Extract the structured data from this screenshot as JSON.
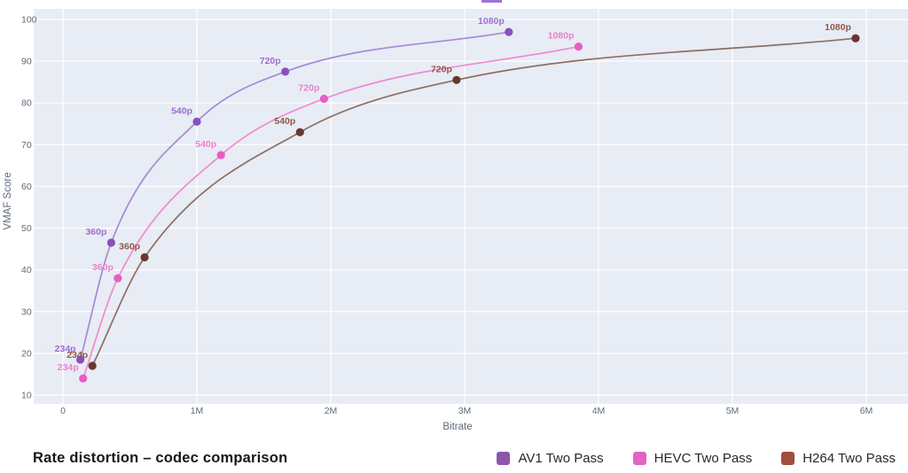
{
  "chart_data": {
    "type": "line",
    "title": "Rate distortion – codec comparison",
    "xlabel": "Bitrate",
    "ylabel": "VMAF Score",
    "grid": true,
    "legend_position": "bottom-right",
    "xlim_ticks": [
      0,
      6
    ],
    "ylim_ticks": [
      10,
      100
    ],
    "x_ticks": [
      {
        "value": 0,
        "label": "0"
      },
      {
        "value": 1,
        "label": "1M"
      },
      {
        "value": 2,
        "label": "2M"
      },
      {
        "value": 3,
        "label": "3M"
      },
      {
        "value": 4,
        "label": "4M"
      },
      {
        "value": 5,
        "label": "5M"
      },
      {
        "value": 6,
        "label": "6M"
      }
    ],
    "y_ticks": [
      10,
      20,
      30,
      40,
      50,
      60,
      70,
      80,
      90,
      100
    ],
    "plot_background_color": "#e8ecf4",
    "series": [
      {
        "name": "AV1 Two Pass",
        "color": "#8e55ad",
        "line_color": "#a688d8",
        "dot_color": "#8a4fc0",
        "label_color": "#9a6fd0",
        "points": [
          {
            "label": "234p",
            "bitrate_m": 0.13,
            "vmaf": 18.5
          },
          {
            "label": "360p",
            "bitrate_m": 0.36,
            "vmaf": 46.5
          },
          {
            "label": "540p",
            "bitrate_m": 1.0,
            "vmaf": 75.5
          },
          {
            "label": "720p",
            "bitrate_m": 1.66,
            "vmaf": 87.5
          },
          {
            "label": "1080p",
            "bitrate_m": 3.33,
            "vmaf": 97.0
          }
        ]
      },
      {
        "name": "HEVC Two Pass",
        "color": "#e263c3",
        "line_color": "#ee8ad0",
        "dot_color": "#e75ec6",
        "label_color": "#ee7fcb",
        "points": [
          {
            "label": "234p",
            "bitrate_m": 0.15,
            "vmaf": 14.0
          },
          {
            "label": "360p",
            "bitrate_m": 0.41,
            "vmaf": 38.0
          },
          {
            "label": "540p",
            "bitrate_m": 1.18,
            "vmaf": 67.5
          },
          {
            "label": "720p",
            "bitrate_m": 1.95,
            "vmaf": 81.0
          },
          {
            "label": "1080p",
            "bitrate_m": 3.85,
            "vmaf": 93.5
          }
        ]
      },
      {
        "name": "H264 Two Pass",
        "color": "#a04e3e",
        "line_color": "#8d6f62",
        "dot_color": "#66382f",
        "label_color": "#93584a",
        "points": [
          {
            "label": "234p",
            "bitrate_m": 0.22,
            "vmaf": 17.0
          },
          {
            "label": "360p",
            "bitrate_m": 0.61,
            "vmaf": 43.0
          },
          {
            "label": "540p",
            "bitrate_m": 1.77,
            "vmaf": 73.0
          },
          {
            "label": "720p",
            "bitrate_m": 2.94,
            "vmaf": 85.5
          },
          {
            "label": "1080p",
            "bitrate_m": 5.92,
            "vmaf": 95.5
          }
        ]
      }
    ]
  }
}
